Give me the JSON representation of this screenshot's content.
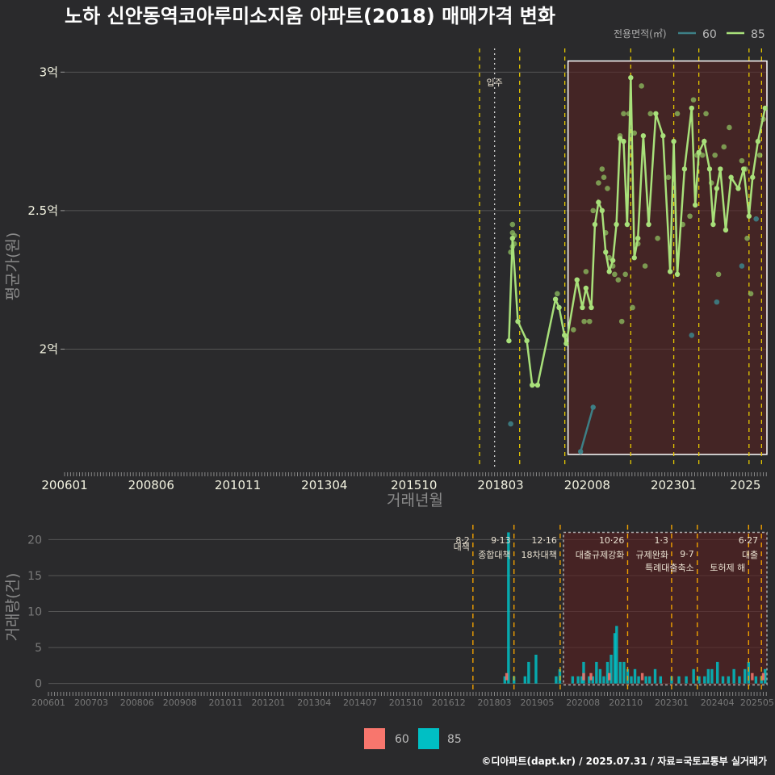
{
  "title": "노하 신안동역코아루미소지움 아파트(2018) 매매가격 변화",
  "footer": "©디아파트(dapt.kr) / 2025.07.31 / 자료=국토교통부 실거래가",
  "colors": {
    "bg": "#2a2a2c",
    "s60": "#3d7f86",
    "s85": "#a8e07a",
    "bar60": "#f8766d",
    "bar85": "#00bfc4",
    "vline": "#e6c800",
    "bvline": "#f0a000",
    "rect": "#5a2020"
  },
  "chart_data": [
    {
      "type": "line",
      "title": "노하 신안동역코아루미소지움 아파트(2018) 매매가격 변화",
      "xlabel": "거래년월",
      "ylabel": "평균가(원)",
      "x_ticks": [
        "200601",
        "200806",
        "201011",
        "201304",
        "201510",
        "201803",
        "202008",
        "202301",
        "2025"
      ],
      "y_ticks": [
        "2억",
        "2.5억",
        "3억"
      ],
      "y_tick_values": [
        2.0,
        2.5,
        3.0
      ],
      "ylim": [
        1.57,
        3.1
      ],
      "x_range": [
        2006.0,
        2025.6
      ],
      "legend_title": "전용면적(㎡)",
      "legend": [
        "60",
        "85"
      ],
      "move_in_label": "입주",
      "move_in_x": 2018.0,
      "event_lines_x": [
        2017.58,
        2018.7,
        2019.96,
        2021.8,
        2023.0,
        2023.7,
        2025.1,
        2025.45
      ],
      "highlight_rect": {
        "x0": 2020.05,
        "x1": 2025.6,
        "y0": 1.62,
        "y1": 3.04
      },
      "series": [
        {
          "name": "60",
          "points": [
            [
              2020.4,
              1.63
            ],
            [
              2020.75,
              1.79
            ]
          ],
          "scatter": [
            [
              2018.45,
              1.73
            ],
            [
              2023.5,
              2.05
            ],
            [
              2024.2,
              2.17
            ],
            [
              2024.9,
              2.3
            ],
            [
              2025.3,
              2.47
            ]
          ]
        },
        {
          "name": "85",
          "points": [
            [
              2018.4,
              2.03
            ],
            [
              2018.5,
              2.4
            ],
            [
              2018.65,
              2.1
            ],
            [
              2018.9,
              2.03
            ],
            [
              2019.05,
              1.87
            ],
            [
              2019.2,
              1.87
            ],
            [
              2019.7,
              2.18
            ],
            [
              2019.8,
              2.15
            ],
            [
              2019.95,
              2.05
            ],
            [
              2020.0,
              2.02
            ],
            [
              2020.3,
              2.25
            ],
            [
              2020.45,
              2.15
            ],
            [
              2020.55,
              2.22
            ],
            [
              2020.7,
              2.15
            ],
            [
              2020.8,
              2.45
            ],
            [
              2020.9,
              2.53
            ],
            [
              2021.0,
              2.5
            ],
            [
              2021.1,
              2.35
            ],
            [
              2021.2,
              2.28
            ],
            [
              2021.3,
              2.32
            ],
            [
              2021.4,
              2.45
            ],
            [
              2021.5,
              2.76
            ],
            [
              2021.6,
              2.75
            ],
            [
              2021.7,
              2.45
            ],
            [
              2021.8,
              2.98
            ],
            [
              2021.9,
              2.33
            ],
            [
              2022.0,
              2.4
            ],
            [
              2022.15,
              2.77
            ],
            [
              2022.3,
              2.45
            ],
            [
              2022.5,
              2.85
            ],
            [
              2022.7,
              2.77
            ],
            [
              2022.9,
              2.28
            ],
            [
              2023.0,
              2.75
            ],
            [
              2023.1,
              2.27
            ],
            [
              2023.3,
              2.65
            ],
            [
              2023.5,
              2.87
            ],
            [
              2023.6,
              2.52
            ],
            [
              2023.7,
              2.71
            ],
            [
              2023.85,
              2.75
            ],
            [
              2024.0,
              2.65
            ],
            [
              2024.1,
              2.45
            ],
            [
              2024.2,
              2.58
            ],
            [
              2024.3,
              2.65
            ],
            [
              2024.45,
              2.43
            ],
            [
              2024.6,
              2.62
            ],
            [
              2024.8,
              2.58
            ],
            [
              2024.95,
              2.65
            ],
            [
              2025.1,
              2.48
            ],
            [
              2025.2,
              2.62
            ],
            [
              2025.35,
              2.75
            ],
            [
              2025.55,
              2.87
            ]
          ],
          "scatter": [
            [
              2018.45,
              2.35
            ],
            [
              2018.5,
              2.37
            ],
            [
              2018.5,
              2.42
            ],
            [
              2018.5,
              2.45
            ],
            [
              2018.55,
              2.38
            ],
            [
              2018.55,
              2.41
            ],
            [
              2019.75,
              2.2
            ],
            [
              2020.2,
              2.07
            ],
            [
              2020.5,
              2.1
            ],
            [
              2020.55,
              2.28
            ],
            [
              2020.65,
              2.1
            ],
            [
              2020.75,
              2.5
            ],
            [
              2020.9,
              2.6
            ],
            [
              2021.0,
              2.65
            ],
            [
              2021.05,
              2.62
            ],
            [
              2021.1,
              2.42
            ],
            [
              2021.15,
              2.58
            ],
            [
              2021.2,
              2.33
            ],
            [
              2021.3,
              2.3
            ],
            [
              2021.35,
              2.27
            ],
            [
              2021.45,
              2.25
            ],
            [
              2021.5,
              2.77
            ],
            [
              2021.55,
              2.1
            ],
            [
              2021.6,
              2.85
            ],
            [
              2021.65,
              2.27
            ],
            [
              2021.75,
              2.85
            ],
            [
              2021.85,
              2.15
            ],
            [
              2021.9,
              2.78
            ],
            [
              2022.0,
              2.38
            ],
            [
              2022.1,
              2.95
            ],
            [
              2022.2,
              2.3
            ],
            [
              2022.35,
              2.85
            ],
            [
              2022.55,
              2.4
            ],
            [
              2022.85,
              2.62
            ],
            [
              2023.1,
              2.85
            ],
            [
              2023.25,
              2.45
            ],
            [
              2023.45,
              2.48
            ],
            [
              2023.55,
              2.9
            ],
            [
              2023.65,
              2.7
            ],
            [
              2023.8,
              2.7
            ],
            [
              2023.9,
              2.85
            ],
            [
              2024.05,
              2.6
            ],
            [
              2024.15,
              2.7
            ],
            [
              2024.25,
              2.27
            ],
            [
              2024.4,
              2.73
            ],
            [
              2024.55,
              2.8
            ],
            [
              2024.9,
              2.68
            ],
            [
              2025.0,
              2.65
            ],
            [
              2025.05,
              2.4
            ],
            [
              2025.15,
              2.2
            ],
            [
              2025.4,
              2.7
            ],
            [
              2025.5,
              2.83
            ]
          ]
        }
      ]
    },
    {
      "type": "bar",
      "xlabel": "",
      "ylabel": "거래량(건)",
      "y_ticks": [
        "0",
        "5",
        "10",
        "15",
        "20"
      ],
      "y_tick_values": [
        0,
        5,
        10,
        15,
        20
      ],
      "ylim": [
        -0.6,
        21.5
      ],
      "x_ticks": [
        "200601",
        "200703",
        "200806",
        "200908",
        "201011",
        "201201",
        "201304",
        "201407",
        "201510",
        "201612",
        "201803",
        "201905",
        "202008",
        "202110",
        "202301",
        "202404",
        "202505"
      ],
      "legend": [
        "60",
        "85"
      ],
      "events": [
        {
          "date": "8·2",
          "label": "대책",
          "x": 2017.58
        },
        {
          "date": "9·13",
          "label": "종합대책",
          "x": 2018.7
        },
        {
          "date": "12·16",
          "label": "18차대책",
          "x": 2019.96
        },
        {
          "date": "10·26",
          "label": "대출규제강화",
          "x": 2021.8
        },
        {
          "date": "1·3",
          "label": "규제완화",
          "x": 2023.0
        },
        {
          "date": "9·7",
          "label": "특례대출축소",
          "x": 2023.7
        },
        {
          "date": "",
          "label": "토허제 해",
          "x": 2025.1
        },
        {
          "date": "6·27",
          "label": "대출",
          "x": 2025.45
        }
      ],
      "highlight_rect": {
        "x0": 2020.05,
        "x1": 2025.6,
        "y0": -0.2,
        "y1": 21
      },
      "series": [
        {
          "name": "60",
          "points": [
            [
              2018.5,
              1
            ],
            [
              2020.6,
              1
            ],
            [
              2020.8,
              1
            ],
            [
              2021.3,
              1
            ],
            [
              2022.2,
              1
            ],
            [
              2025.2,
              1
            ],
            [
              2025.5,
              1
            ]
          ]
        },
        {
          "name": "85",
          "points": [
            [
              2018.45,
              1
            ],
            [
              2018.55,
              21
            ],
            [
              2018.7,
              1
            ],
            [
              2019.0,
              1
            ],
            [
              2019.1,
              3
            ],
            [
              2019.3,
              4
            ],
            [
              2019.85,
              1
            ],
            [
              2019.95,
              2
            ],
            [
              2020.3,
              1
            ],
            [
              2020.45,
              1
            ],
            [
              2020.55,
              1
            ],
            [
              2020.6,
              3
            ],
            [
              2020.75,
              1
            ],
            [
              2020.85,
              1
            ],
            [
              2020.95,
              3
            ],
            [
              2021.05,
              2
            ],
            [
              2021.15,
              1
            ],
            [
              2021.25,
              3
            ],
            [
              2021.35,
              4
            ],
            [
              2021.45,
              7
            ],
            [
              2021.5,
              8
            ],
            [
              2021.6,
              3
            ],
            [
              2021.7,
              3
            ],
            [
              2021.8,
              2
            ],
            [
              2021.9,
              1
            ],
            [
              2022.0,
              2
            ],
            [
              2022.1,
              1
            ],
            [
              2022.3,
              1
            ],
            [
              2022.4,
              1
            ],
            [
              2022.55,
              2
            ],
            [
              2022.7,
              1
            ],
            [
              2023.0,
              1
            ],
            [
              2023.2,
              1
            ],
            [
              2023.4,
              1
            ],
            [
              2023.6,
              2
            ],
            [
              2023.75,
              1
            ],
            [
              2023.9,
              1
            ],
            [
              2024.0,
              2
            ],
            [
              2024.1,
              2
            ],
            [
              2024.25,
              3
            ],
            [
              2024.4,
              1
            ],
            [
              2024.55,
              1
            ],
            [
              2024.7,
              2
            ],
            [
              2024.85,
              1
            ],
            [
              2025.0,
              2
            ],
            [
              2025.1,
              3
            ],
            [
              2025.3,
              1
            ],
            [
              2025.45,
              1
            ],
            [
              2025.55,
              2
            ]
          ]
        }
      ]
    }
  ]
}
